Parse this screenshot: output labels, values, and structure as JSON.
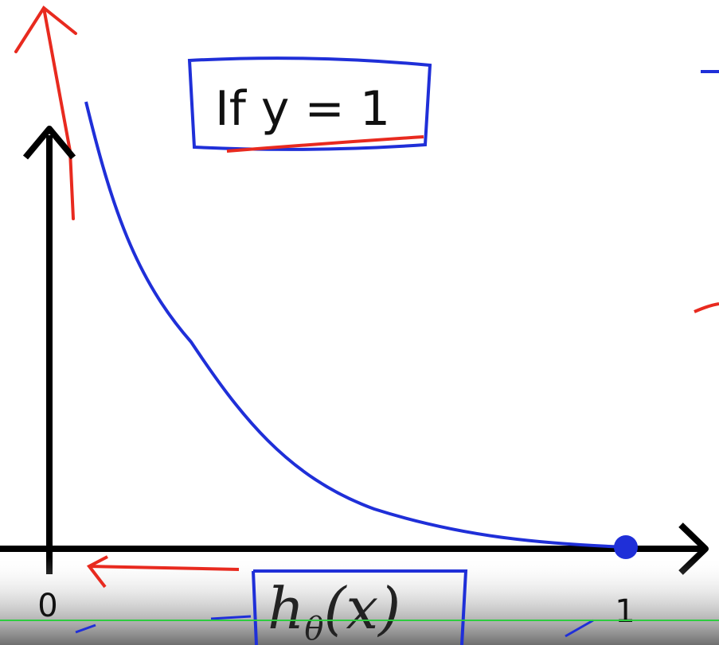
{
  "slide": {
    "title": "If y = 1",
    "x_origin_label": "0",
    "x_end_label": "1",
    "axis_label": {
      "base": "h",
      "subscript": "θ",
      "argument": "(x)"
    }
  }
}
